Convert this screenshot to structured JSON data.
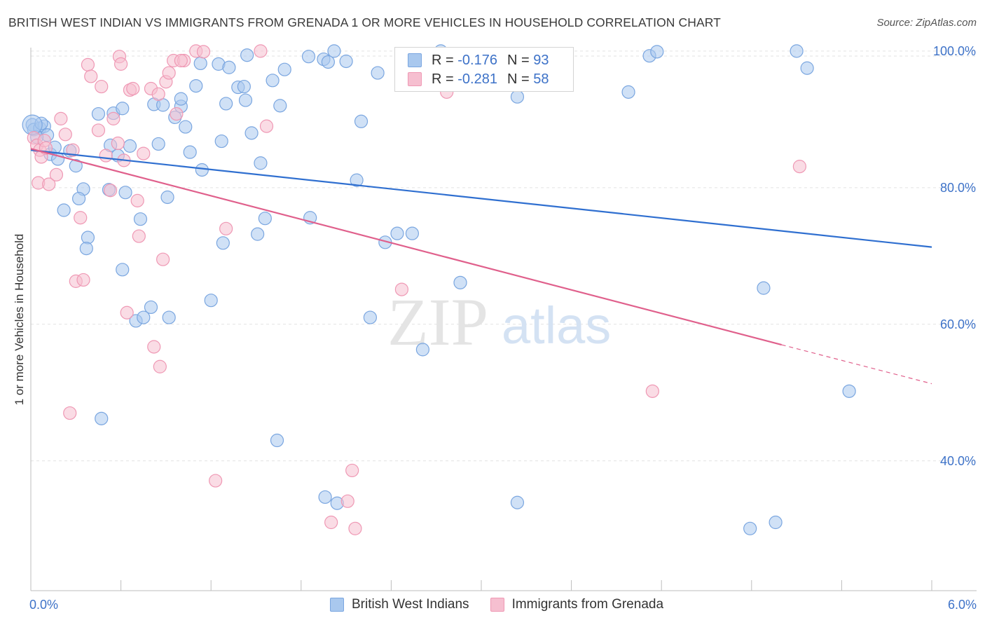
{
  "header": {
    "title": "BRITISH WEST INDIAN VS IMMIGRANTS FROM GRENADA 1 OR MORE VEHICLES IN HOUSEHOLD CORRELATION CHART",
    "source": "Source: ZipAtlas.com"
  },
  "watermark": {
    "zip": "ZIP",
    "atlas": "atlas"
  },
  "legend": {
    "rows": [
      {
        "r_label": "R =",
        "r_value": "-0.176",
        "n_label": "N =",
        "n_value": "93"
      },
      {
        "r_label": "R =",
        "r_value": "-0.281",
        "n_label": "N =",
        "n_value": "58"
      }
    ]
  },
  "colors": {
    "blue_fill": "#a9c8ee",
    "blue_stroke": "#7aa6e0",
    "blue_line": "#2f6fd0",
    "pink_fill": "#f6bfd0",
    "pink_stroke": "#ef98b4",
    "pink_line": "#e0608c",
    "axis_label": "#3d72c8",
    "grid": "#e2e2e2"
  },
  "chart_data": {
    "type": "scatter",
    "title": "BRITISH WEST INDIAN VS IMMIGRANTS FROM GRENADA 1 OR MORE VEHICLES IN HOUSEHOLD CORRELATION CHART",
    "xlabel": "",
    "ylabel": "1 or more Vehicles in Household",
    "xlim": [
      0,
      6
    ],
    "ylim": [
      21,
      100.5
    ],
    "x_tick_labels": [
      "0.0%",
      "6.0%"
    ],
    "y_ticks": [
      40,
      60,
      80,
      100
    ],
    "y_tick_labels": [
      "40.0%",
      "60.0%",
      "80.0%",
      "100.0%"
    ],
    "grid": true,
    "legend_position": "bottom",
    "series": [
      {
        "name": "British West Indians",
        "R": -0.176,
        "N": 93,
        "trend": {
          "x": [
            0,
            6
          ],
          "y": [
            85.5,
            71.3
          ]
        },
        "points": [
          [
            0.01,
            89.2
          ],
          [
            0.02,
            88.5
          ],
          [
            0.06,
            88.7
          ],
          [
            0.09,
            89.0
          ],
          [
            0.11,
            87.7
          ],
          [
            0.13,
            84.9
          ],
          [
            0.16,
            85.9
          ],
          [
            0.18,
            84.2
          ],
          [
            0.26,
            85.4
          ],
          [
            0.3,
            83.2
          ],
          [
            0.35,
            79.8
          ],
          [
            0.32,
            78.4
          ],
          [
            0.38,
            72.7
          ],
          [
            0.37,
            71.1
          ],
          [
            0.45,
            90.8
          ],
          [
            0.52,
            79.7
          ],
          [
            0.53,
            86.2
          ],
          [
            0.55,
            90.9
          ],
          [
            0.58,
            84.7
          ],
          [
            0.61,
            91.6
          ],
          [
            0.63,
            79.3
          ],
          [
            0.66,
            86.1
          ],
          [
            0.61,
            68.0
          ],
          [
            0.73,
            75.4
          ],
          [
            0.7,
            60.5
          ],
          [
            0.75,
            61.0
          ],
          [
            0.8,
            62.5
          ],
          [
            0.82,
            92.2
          ],
          [
            0.85,
            86.4
          ],
          [
            0.88,
            92.1
          ],
          [
            0.91,
            78.6
          ],
          [
            0.92,
            61.0
          ],
          [
            0.96,
            90.3
          ],
          [
            1.0,
            91.9
          ],
          [
            1.03,
            88.9
          ],
          [
            1.06,
            85.2
          ],
          [
            1.1,
            94.9
          ],
          [
            1.13,
            98.2
          ],
          [
            1.14,
            82.6
          ],
          [
            1.2,
            63.5
          ],
          [
            1.25,
            98.1
          ],
          [
            1.27,
            86.8
          ],
          [
            1.28,
            71.9
          ],
          [
            1.3,
            92.3
          ],
          [
            1.32,
            97.6
          ],
          [
            1.38,
            94.7
          ],
          [
            1.42,
            94.8
          ],
          [
            1.43,
            92.8
          ],
          [
            1.44,
            99.4
          ],
          [
            1.47,
            88.0
          ],
          [
            1.51,
            73.2
          ],
          [
            1.53,
            83.6
          ],
          [
            1.56,
            75.5
          ],
          [
            1.61,
            95.7
          ],
          [
            1.64,
            43.0
          ],
          [
            1.66,
            92.0
          ],
          [
            1.69,
            97.3
          ],
          [
            1.85,
            99.2
          ],
          [
            1.86,
            75.6
          ],
          [
            1.95,
            98.8
          ],
          [
            1.98,
            98.4
          ],
          [
            1.96,
            34.7
          ],
          [
            2.02,
            100.0
          ],
          [
            2.04,
            33.8
          ],
          [
            2.1,
            98.5
          ],
          [
            2.17,
            81.1
          ],
          [
            2.2,
            89.7
          ],
          [
            2.26,
            61.0
          ],
          [
            2.31,
            96.8
          ],
          [
            2.36,
            72.0
          ],
          [
            2.44,
            73.3
          ],
          [
            2.54,
            73.3
          ],
          [
            2.61,
            56.3
          ],
          [
            2.67,
            95.5
          ],
          [
            2.73,
            100.0
          ],
          [
            2.86,
            66.1
          ],
          [
            3.24,
            33.9
          ],
          [
            3.24,
            93.3
          ],
          [
            3.26,
            99.0
          ],
          [
            3.98,
            94.0
          ],
          [
            4.12,
            99.3
          ],
          [
            4.17,
            99.9
          ],
          [
            4.79,
            30.1
          ],
          [
            4.88,
            65.3
          ],
          [
            4.96,
            31.0
          ],
          [
            5.1,
            100.0
          ],
          [
            5.17,
            97.5
          ],
          [
            5.45,
            50.2
          ],
          [
            0.07,
            89.4
          ],
          [
            0.04,
            87.4
          ],
          [
            0.22,
            76.7
          ],
          [
            1.0,
            93.0
          ],
          [
            0.47,
            46.2
          ]
        ]
      },
      {
        "name": "Immigrants from Grenada",
        "R": -0.281,
        "N": 58,
        "trend": {
          "x": [
            0,
            5.0
          ],
          "y": [
            85.7,
            57.0
          ]
        },
        "trend_dashed": {
          "x": [
            5.0,
            6
          ],
          "y": [
            57.0,
            51.3
          ]
        },
        "points": [
          [
            0.02,
            87.3
          ],
          [
            0.04,
            86.2
          ],
          [
            0.06,
            85.5
          ],
          [
            0.07,
            84.5
          ],
          [
            0.05,
            80.7
          ],
          [
            0.09,
            86.9
          ],
          [
            0.12,
            80.5
          ],
          [
            0.17,
            81.9
          ],
          [
            0.2,
            90.1
          ],
          [
            0.23,
            87.8
          ],
          [
            0.28,
            85.5
          ],
          [
            0.26,
            47.0
          ],
          [
            0.3,
            66.3
          ],
          [
            0.33,
            75.6
          ],
          [
            0.35,
            66.5
          ],
          [
            0.38,
            98.0
          ],
          [
            0.4,
            96.3
          ],
          [
            0.45,
            88.4
          ],
          [
            0.47,
            94.8
          ],
          [
            0.5,
            84.7
          ],
          [
            0.53,
            79.6
          ],
          [
            0.55,
            90.1
          ],
          [
            0.58,
            86.5
          ],
          [
            0.59,
            99.2
          ],
          [
            0.6,
            98.1
          ],
          [
            0.62,
            84.0
          ],
          [
            0.64,
            61.7
          ],
          [
            0.66,
            94.3
          ],
          [
            0.68,
            94.5
          ],
          [
            0.71,
            78.1
          ],
          [
            0.72,
            72.9
          ],
          [
            0.75,
            85.0
          ],
          [
            0.8,
            94.5
          ],
          [
            0.82,
            56.7
          ],
          [
            0.85,
            93.7
          ],
          [
            0.86,
            53.8
          ],
          [
            0.88,
            69.5
          ],
          [
            0.9,
            95.5
          ],
          [
            0.92,
            96.8
          ],
          [
            0.95,
            98.6
          ],
          [
            0.97,
            90.8
          ],
          [
            1.02,
            98.6
          ],
          [
            1.1,
            100.0
          ],
          [
            1.15,
            99.9
          ],
          [
            1.23,
            37.1
          ],
          [
            1.3,
            74.0
          ],
          [
            1.53,
            100.0
          ],
          [
            1.57,
            89.0
          ],
          [
            2.0,
            31.0
          ],
          [
            2.11,
            34.1
          ],
          [
            2.14,
            38.6
          ],
          [
            2.16,
            30.1
          ],
          [
            2.47,
            65.1
          ],
          [
            2.77,
            94.0
          ],
          [
            4.14,
            50.2
          ],
          [
            5.12,
            83.1
          ],
          [
            0.1,
            85.8
          ],
          [
            1.0,
            98.6
          ]
        ]
      }
    ]
  },
  "bottom_legend": [
    "British West Indians",
    "Immigrants from Grenada"
  ]
}
